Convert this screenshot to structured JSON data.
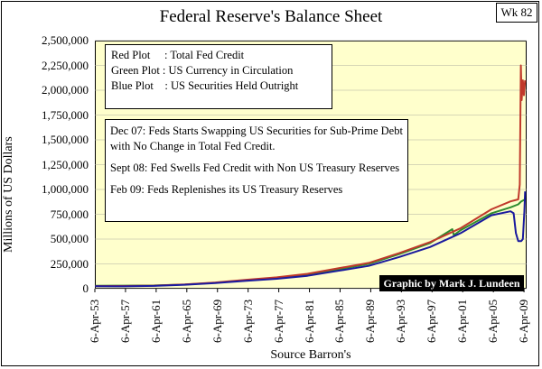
{
  "week_badge": "Wk 82",
  "chart_data": {
    "type": "line",
    "title": "Federal Reserve's Balance Sheet",
    "ylabel": "Millions of US Dollars",
    "xlabel": "Source Barron's",
    "ylim": [
      0,
      2500000
    ],
    "xlim": [
      1953.26,
      2009.6
    ],
    "yticks": [
      "2,500,000",
      "2,250,000",
      "2,000,000",
      "1,750,000",
      "1,500,000",
      "1,250,000",
      "1,000,000",
      "750,000",
      "500,000",
      "250,000",
      "0"
    ],
    "ytick_values": [
      2500000,
      2250000,
      2000000,
      1750000,
      1500000,
      1250000,
      1000000,
      750000,
      500000,
      250000,
      0
    ],
    "xticks": [
      "6-Apr-53",
      "6-Apr-57",
      "6-Apr-61",
      "6-Apr-65",
      "6-Apr-69",
      "6-Apr-73",
      "6-Apr-77",
      "6-Apr-81",
      "6-Apr-85",
      "6-Apr-89",
      "6-Apr-93",
      "6-Apr-97",
      "6-Apr-01",
      "6-Apr-05",
      "6-Apr-09"
    ],
    "xtick_values": [
      1953.26,
      1957.26,
      1961.26,
      1965.26,
      1969.26,
      1973.26,
      1977.26,
      1981.26,
      1985.26,
      1989.26,
      1993.26,
      1997.26,
      2001.26,
      2005.26,
      2009.26
    ],
    "grid": true,
    "series": [
      {
        "name": "Total Fed Credit",
        "color": "#c0392b",
        "x": [
          1953.3,
          1957,
          1961,
          1965,
          1969,
          1973,
          1977,
          1981,
          1985,
          1989,
          1993,
          1997,
          2001,
          2005,
          2007.5,
          2008.5,
          2008.7,
          2008.85,
          2008.95,
          2009.1,
          2009.25,
          2009.4
        ],
        "y": [
          26000,
          27000,
          31000,
          43000,
          63000,
          90000,
          115000,
          150000,
          205000,
          260000,
          360000,
          470000,
          610000,
          800000,
          880000,
          900000,
          1050000,
          2250000,
          1900000,
          2100000,
          1950000,
          2100000
        ]
      },
      {
        "name": "US Currency in Circulation",
        "color": "#2e8b2e",
        "x": [
          1953.3,
          1957,
          1961,
          1965,
          1969,
          1973,
          1977,
          1981,
          1985,
          1989,
          1993,
          1997,
          1999.9,
          2000.1,
          2001,
          2005,
          2007.5,
          2008.5,
          2008.9,
          2009.4
        ],
        "y": [
          30000,
          31000,
          33000,
          42000,
          60000,
          85000,
          110000,
          145000,
          195000,
          250000,
          350000,
          460000,
          600000,
          540000,
          590000,
          760000,
          820000,
          850000,
          880000,
          900000
        ]
      },
      {
        "name": "US Securities Held Outright",
        "color": "#1a1a9e",
        "x": [
          1953.3,
          1957,
          1961,
          1965,
          1969,
          1973,
          1977,
          1981,
          1985,
          1989,
          1993,
          1997,
          2001,
          2005,
          2007.5,
          2007.9,
          2008.2,
          2008.5,
          2008.9,
          2009.1,
          2009.3,
          2009.4
        ],
        "y": [
          25000,
          24000,
          28000,
          40000,
          57000,
          80000,
          100000,
          130000,
          180000,
          230000,
          320000,
          420000,
          560000,
          740000,
          780000,
          760000,
          560000,
          480000,
          480000,
          500000,
          780000,
          980000
        ]
      }
    ]
  },
  "legend": {
    "lines": [
      "Red Plot     : Total Fed Credit",
      "Green Plot : US Currency in Circulation",
      "Blue Plot    : US Securities Held Outright"
    ]
  },
  "annotations": [
    "Dec 07: Feds Starts Swapping US Securities for Sub-Prime Debt with No Change in Total Fed Credit.",
    "Sept 08:  Fed Swells Fed Credit with Non US Treasury Reserves",
    "Feb 09: Feds Replenishes its US Treasury Reserves"
  ],
  "credit": "Graphic by Mark J. Lundeen"
}
